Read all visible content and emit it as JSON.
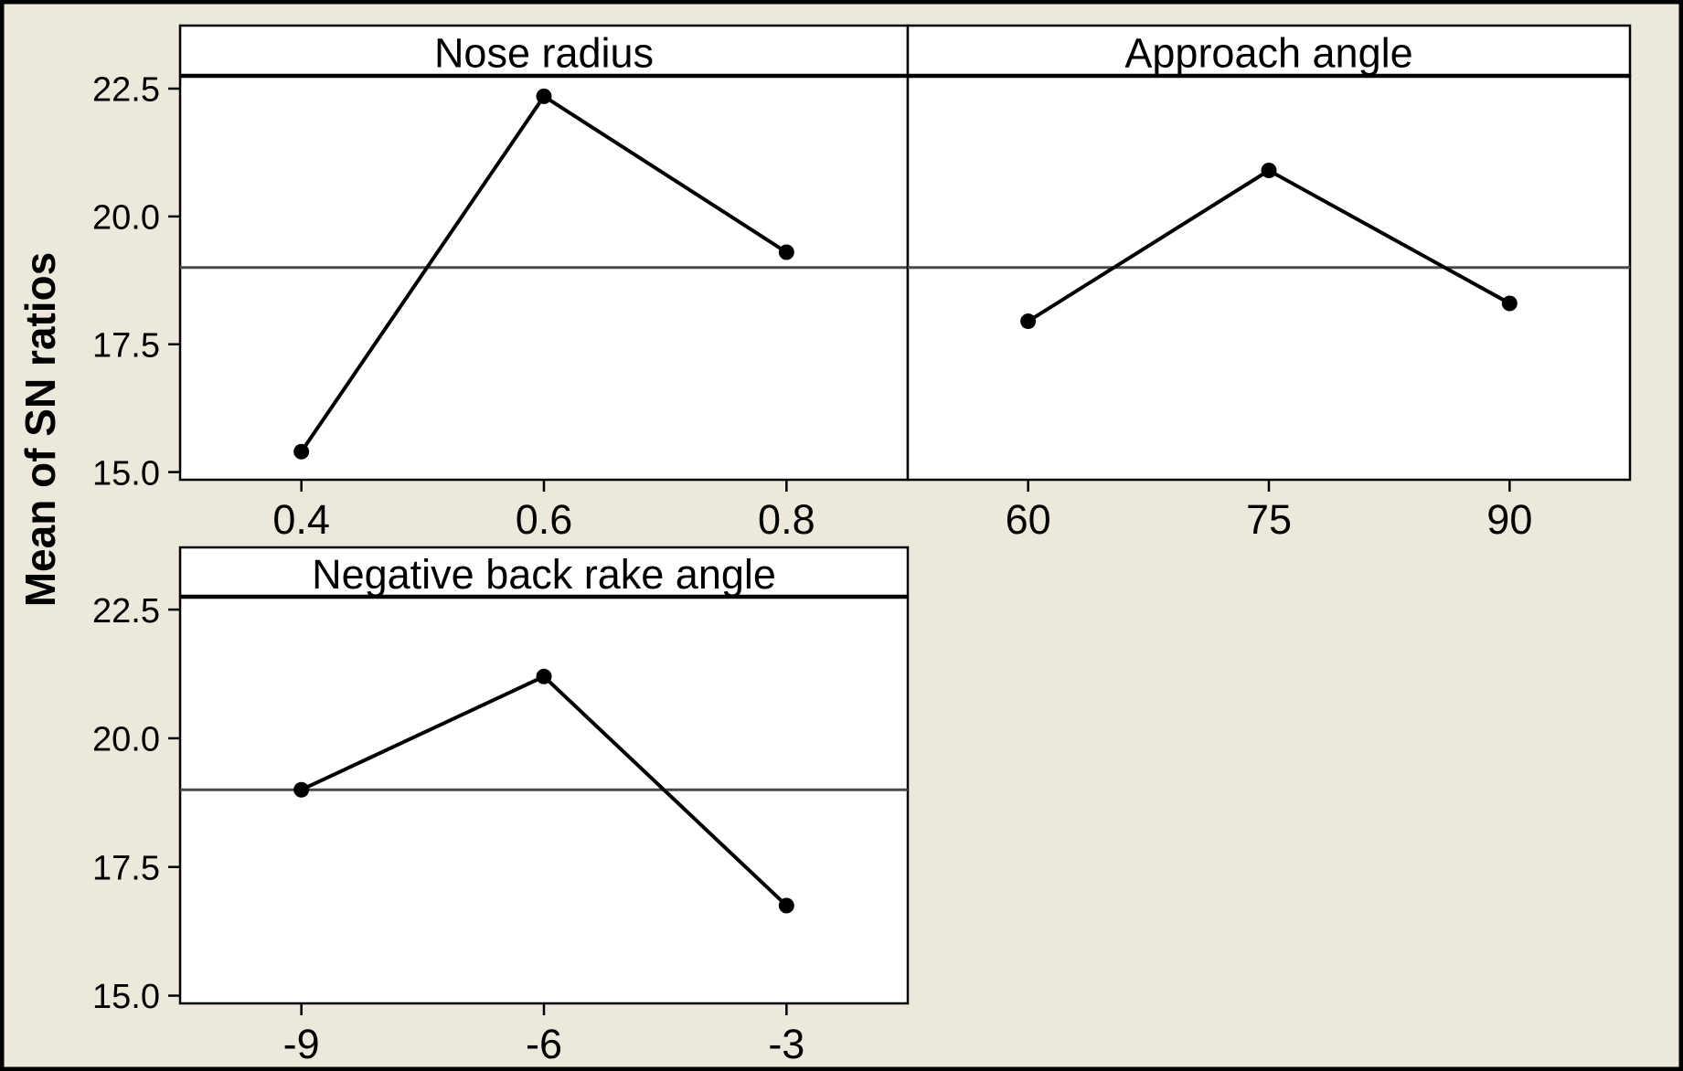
{
  "window": {
    "background_color": "#ece8db",
    "outer_border_color": "#000000"
  },
  "chart_data": {
    "type": "line",
    "chart_kind": "main-effects-plot",
    "title": "",
    "ylabel": "Mean of SN ratios",
    "xlabel": "",
    "ylim": [
      14.85,
      22.75
    ],
    "grid": false,
    "legend": false,
    "y_ticks": [
      {
        "value": 22.5,
        "label": "22.5"
      },
      {
        "value": 20.0,
        "label": "20.0"
      },
      {
        "value": 17.5,
        "label": "17.5"
      },
      {
        "value": 15.0,
        "label": "15.0"
      }
    ],
    "reference_line": {
      "value": 19.0,
      "color": "#4a4a4a"
    },
    "panels": [
      {
        "title": "Nose radius",
        "categories": [
          "0.4",
          "0.6",
          "0.8"
        ],
        "values": [
          15.4,
          22.35,
          19.3
        ]
      },
      {
        "title": "Approach angle",
        "categories": [
          "60",
          "75",
          "90"
        ],
        "values": [
          17.95,
          20.9,
          18.3
        ]
      },
      {
        "title": "Negative back rake angle",
        "categories": [
          "-9",
          "-6",
          "-3"
        ],
        "values": [
          19.0,
          21.2,
          16.75
        ]
      }
    ],
    "colors": {
      "data_line": "#000000",
      "marker": "#000000",
      "panel_background": "#ffffff",
      "title_strip_background": "#ffffff",
      "panel_border": "#000000",
      "reference_line": "#4a4a4a"
    }
  }
}
